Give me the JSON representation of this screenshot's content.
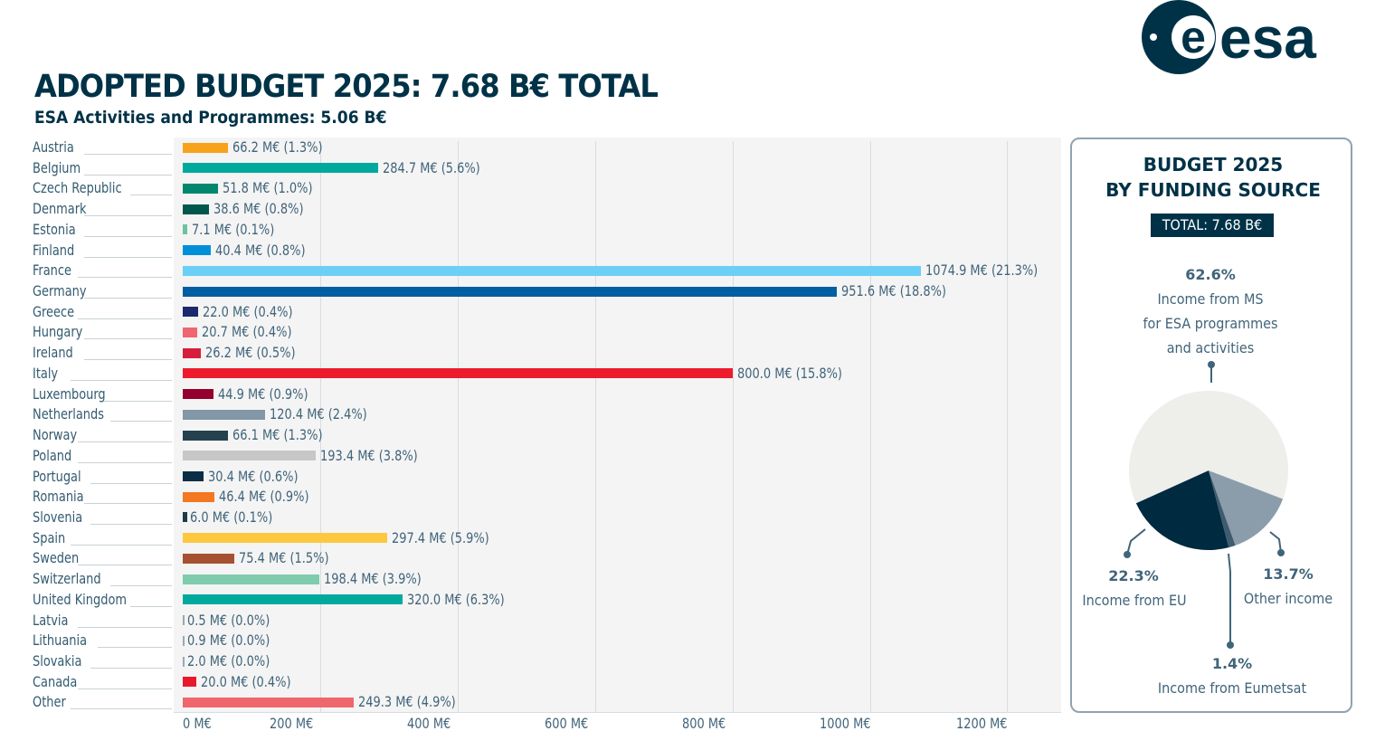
{
  "logo": {
    "text": "esa"
  },
  "header": {
    "title": "ADOPTED BUDGET 2025: 7.68 B€ TOTAL",
    "subtitle": "ESA Activities and Programmes: 5.06 B€"
  },
  "chart_data": [
    {
      "type": "bar",
      "orientation": "horizontal",
      "title": "ESA Activities and Programmes: 5.06 B€",
      "xlabel": "",
      "ylabel": "",
      "xlim": [
        0,
        1250
      ],
      "grid": true,
      "x_ticks": [
        "0 M€",
        "200 M€",
        "400 M€",
        "600 M€",
        "800 M€",
        "1000 M€",
        "1200 M€"
      ],
      "x_tick_values": [
        0,
        200,
        400,
        600,
        800,
        1000,
        1200
      ],
      "categories": [
        "Austria",
        "Belgium",
        "Czech Republic",
        "Denmark",
        "Estonia",
        "Finland",
        "France",
        "Germany",
        "Greece",
        "Hungary",
        "Ireland",
        "Italy",
        "Luxembourg",
        "Netherlands",
        "Norway",
        "Poland",
        "Portugal",
        "Romania",
        "Slovenia",
        "Spain",
        "Sweden",
        "Switzerland",
        "United Kingdom",
        "Latvia",
        "Lithuania",
        "Slovakia",
        "Canada",
        "Other"
      ],
      "values": [
        66.2,
        284.7,
        51.8,
        38.6,
        7.1,
        40.4,
        1074.9,
        951.6,
        22.0,
        20.7,
        26.2,
        800.0,
        44.9,
        120.4,
        66.1,
        193.4,
        30.4,
        46.4,
        6.0,
        297.4,
        75.4,
        198.4,
        320.0,
        0.5,
        0.9,
        2.0,
        20.0,
        249.3
      ],
      "data_labels": [
        "66.2 M€ (1.3%)",
        "284.7 M€ (5.6%)",
        "51.8 M€ (1.0%)",
        "38.6 M€ (0.8%)",
        "7.1 M€ (0.1%)",
        "40.4 M€ (0.8%)",
        "1074.9 M€ (21.3%)",
        "951.6 M€ (18.8%)",
        "22.0 M€ (0.4%)",
        "20.7 M€ (0.4%)",
        "26.2 M€ (0.5%)",
        "800.0 M€ (15.8%)",
        "44.9 M€ (0.9%)",
        "120.4 M€ (2.4%)",
        "66.1 M€ (1.3%)",
        "193.4 M€ (3.8%)",
        "30.4 M€ (0.6%)",
        "46.4 M€ (0.9%)",
        "6.0 M€ (0.1%)",
        "297.4 M€ (5.9%)",
        "75.4 M€ (1.5%)",
        "198.4 M€ (3.9%)",
        "320.0 M€ (6.3%)",
        "0.5 M€ (0.0%)",
        "0.9 M€ (0.0%)",
        "2.0 M€  (0.0%)",
        "20.0 M€ (0.4%)",
        "249.3 M€ (4.9%)"
      ],
      "colors": [
        "#f7a21b",
        "#00a99d",
        "#00876d",
        "#00574b",
        "#6cc3a0",
        "#0090d9",
        "#6ccff6",
        "#005ea2",
        "#1a2a6c",
        "#ef6570",
        "#d71d3c",
        "#ec1c2e",
        "#93002f",
        "#8297a8",
        "#25414f",
        "#c7c7c7",
        "#0b2d45",
        "#f47721",
        "#1c3a48",
        "#fdc840",
        "#a65232",
        "#7fcbae",
        "#00a99d",
        "#9aa9b3",
        "#9aa9b3",
        "#9aa9b3",
        "#e9192d",
        "#f0666d"
      ]
    },
    {
      "type": "pie",
      "title": "BUDGET 2025 BY FUNDING SOURCE",
      "total_label": "TOTAL: 7.68 B€",
      "slices": [
        {
          "label_pct": "62.6%",
          "value": 62.6,
          "label": "Income from MS\nfor ESA programmes\nand activities",
          "label_lines": [
            "Income from MS",
            "for ESA programmes",
            "and activities"
          ],
          "color": "#eeeeeb"
        },
        {
          "label_pct": "13.7%",
          "value": 13.7,
          "label": "Other income",
          "color": "#8b9daa"
        },
        {
          "label_pct": "1.4%",
          "value": 1.4,
          "label": "Income from Eumetsat",
          "color": "#3f5c6f"
        },
        {
          "label_pct": "22.3%",
          "value": 22.3,
          "label": "Income from EU",
          "color": "#002a40"
        }
      ]
    }
  ],
  "colors": {
    "brand": "#003247",
    "panel_border": "#8fa3b0",
    "plot_bg": "#f4f4f4"
  }
}
